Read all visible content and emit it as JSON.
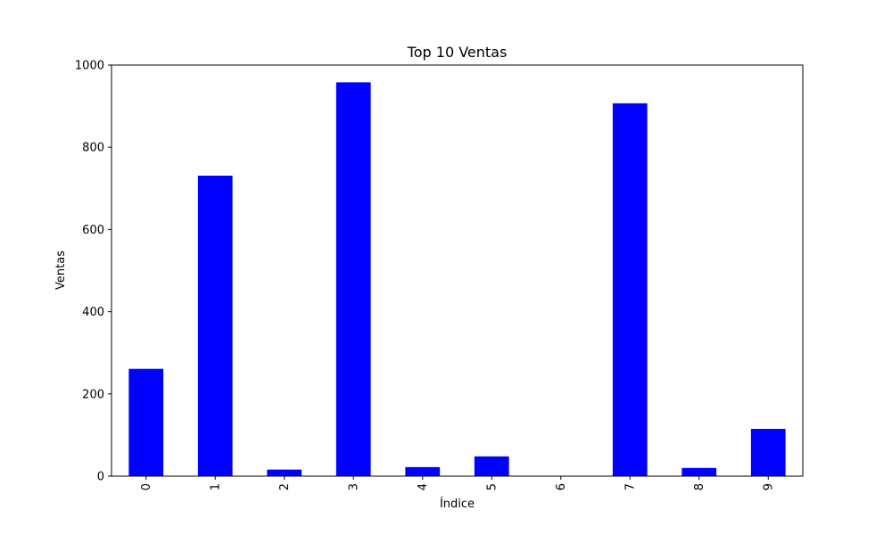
{
  "chart_data": {
    "type": "bar",
    "title": "Top 10 Ventas",
    "xlabel": "Índice",
    "ylabel": "Ventas",
    "categories": [
      "0",
      "1",
      "2",
      "3",
      "4",
      "5",
      "6",
      "7",
      "8",
      "9"
    ],
    "values": [
      261,
      731,
      16,
      958,
      22,
      48,
      0,
      907,
      20,
      115
    ],
    "ylim": [
      0,
      1000
    ],
    "yticks": [
      0,
      200,
      400,
      600,
      800,
      1000
    ],
    "bar_color": "#0000ff",
    "grid": false,
    "legend": "none",
    "x_tick_rotation": "vertical"
  }
}
